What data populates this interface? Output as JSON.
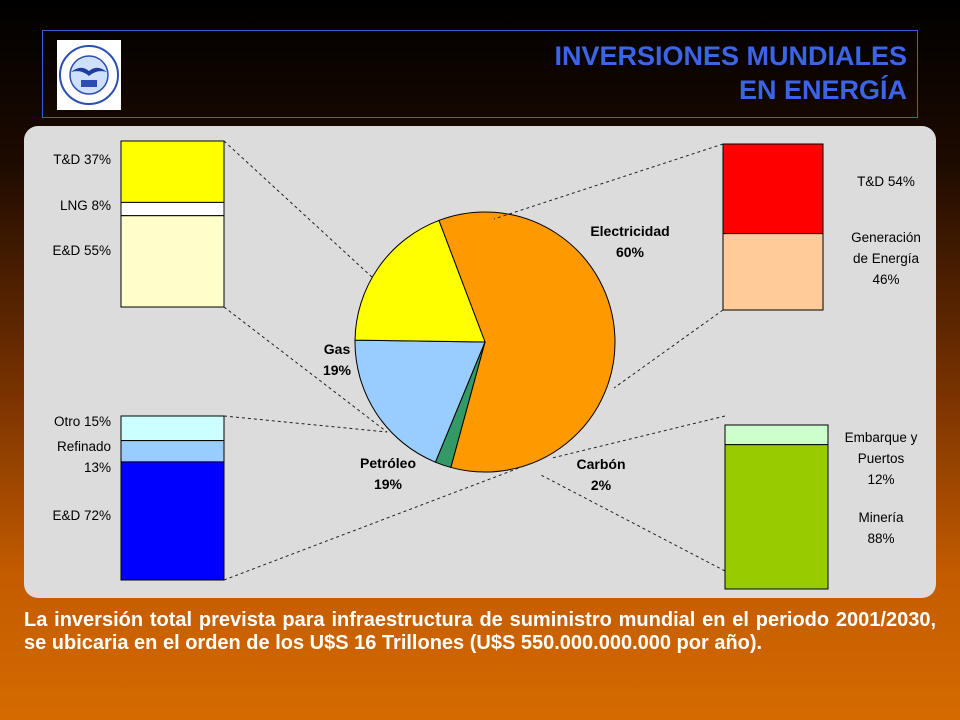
{
  "header": {
    "title_line1": "INVERSIONES MUNDIALES",
    "title_line2": "EN ENERGÍA",
    "title_color": "#3c64e8",
    "logo_text_top": "UNIVERSIDAD NACIONAL DE CUYO",
    "logo_text_bottom": "MENDOZA ARGENTINA"
  },
  "chart_data": [
    {
      "type": "pie",
      "title": "",
      "slices": [
        {
          "label": "Electricidad",
          "pct_label": "60%",
          "value": 60,
          "color": "#ff9900"
        },
        {
          "label": "Carbón",
          "pct_label": "2%",
          "value": 2,
          "color": "#339966"
        },
        {
          "label": "Petróleo",
          "pct_label": "19%",
          "value": 19,
          "color": "#99ccff"
        },
        {
          "label": "Gas",
          "pct_label": "19%",
          "value": 19,
          "color": "#ffff00"
        }
      ]
    },
    {
      "type": "bar",
      "stacked": true,
      "parent": "Gas",
      "segments": [
        {
          "label": "T&D 37%",
          "value": 37,
          "color": "#ffff00"
        },
        {
          "label": "LNG 8%",
          "value": 8,
          "color": "#ffffff"
        },
        {
          "label": "E&D 55%",
          "value": 55,
          "color": "#ffffcc"
        }
      ]
    },
    {
      "type": "bar",
      "stacked": true,
      "parent": "Petróleo",
      "segments": [
        {
          "label": "Otro 15%",
          "value": 15,
          "color": "#ccffff"
        },
        {
          "label": "Refinado 13%",
          "label_lines": [
            "Refinado",
            "13%"
          ],
          "value": 13,
          "color": "#99ccff"
        },
        {
          "label": "E&D 72%",
          "value": 72,
          "color": "#0000ff"
        }
      ]
    },
    {
      "type": "bar",
      "stacked": true,
      "parent": "Electricidad",
      "segments": [
        {
          "label": "T&D 54%",
          "value": 54,
          "color": "#ff0000"
        },
        {
          "label": "Generación de Energía 46%",
          "label_lines": [
            "Generación",
            "de Energía",
            "46%"
          ],
          "value": 46,
          "color": "#ffcc99"
        }
      ]
    },
    {
      "type": "bar",
      "stacked": true,
      "parent": "Carbón",
      "segments": [
        {
          "label": "Embarque y Puertos 12%",
          "label_lines": [
            "Embarque y",
            "Puertos",
            "12%"
          ],
          "value": 12,
          "color": "#ccffcc"
        },
        {
          "label": "Minería 88%",
          "label_lines": [
            "Minería",
            "88%"
          ],
          "value": 88,
          "color": "#99cc00"
        }
      ]
    }
  ],
  "footer": {
    "text": "La inversión total prevista para infraestructura de suministro mundial en el periodo 2001/2030, se ubicaria en el orden de los U$S 16 Trillones (U$S 550.000.000.000 por año)."
  }
}
